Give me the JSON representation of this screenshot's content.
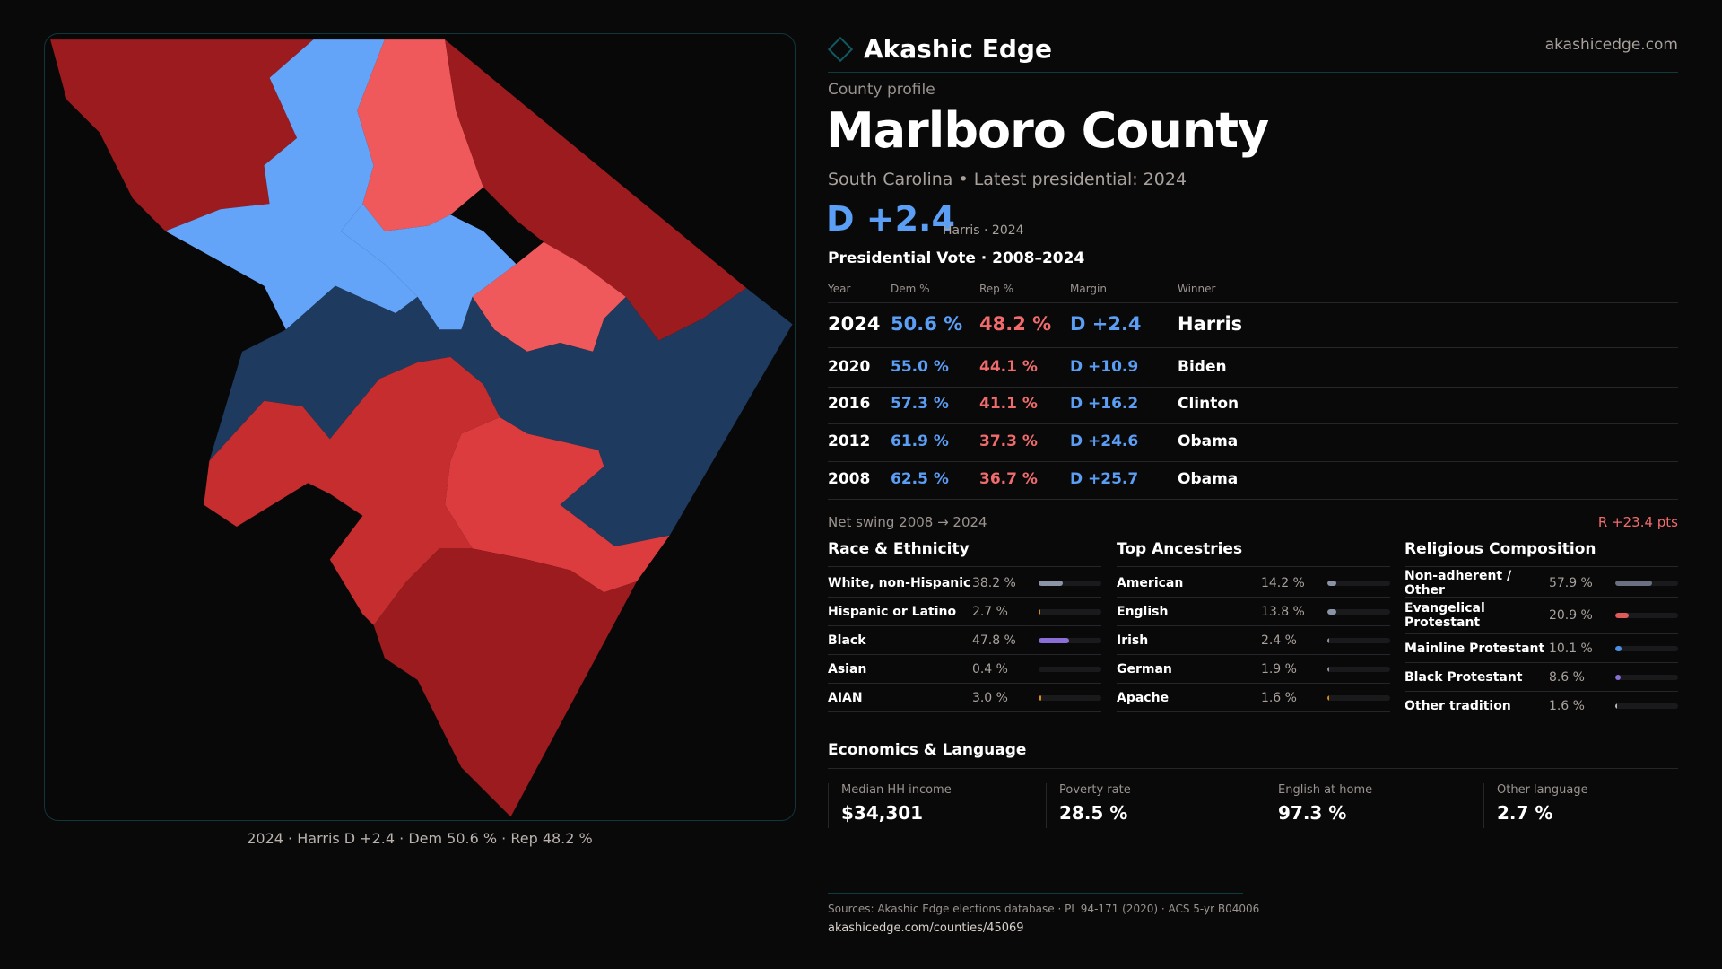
{
  "brand": {
    "name": "Akashic Edge",
    "site": "akashicedge.com"
  },
  "profile": {
    "kicker": "County profile",
    "title": "Marlboro County",
    "subtitle": "South Carolina • Latest presidential: 2024",
    "margin": "D +2.4",
    "margin_sub": "Harris · 2024"
  },
  "map": {
    "caption": "2024 · Harris D +2.4 · Dem 50.6 % · Rep 48.2 %",
    "colors": {
      "dark_red": "#9b1b1e",
      "red": "#c62d2f",
      "light_red": "#f0595c",
      "light_blue": "#63a4f8",
      "navy": "#1e3a5f"
    }
  },
  "vote": {
    "title": "Presidential Vote · 2008–2024",
    "headers": [
      "Year",
      "Dem %",
      "Rep %",
      "Margin",
      "Winner"
    ],
    "rows": [
      [
        "2024",
        "50.6 %",
        "48.2 %",
        "D +2.4",
        "Harris"
      ],
      [
        "2020",
        "55.0 %",
        "44.1 %",
        "D +10.9",
        "Biden"
      ],
      [
        "2016",
        "57.3 %",
        "41.1 %",
        "D +16.2",
        "Clinton"
      ],
      [
        "2012",
        "61.9 %",
        "37.3 %",
        "D +24.6",
        "Obama"
      ],
      [
        "2008",
        "62.5 %",
        "36.7 %",
        "D +25.7",
        "Obama"
      ]
    ],
    "swing_label": "Net swing 2008 → 2024",
    "swing_value": "R +23.4 pts"
  },
  "sections": [
    {
      "title": "Race & Ethnicity",
      "items": [
        {
          "label": "White, non-Hispanic",
          "value": "38.2 %",
          "pct": 38.2,
          "color": "#8a94a6"
        },
        {
          "label": "Hispanic or Latino",
          "value": "2.7 %",
          "pct": 2.7,
          "color": "#d68a1c"
        },
        {
          "label": "Black",
          "value": "47.8 %",
          "pct": 47.8,
          "color": "#8b6fd8"
        },
        {
          "label": "Asian",
          "value": "0.4 %",
          "pct": 0.4,
          "color": "#3aa0a0"
        },
        {
          "label": "AIAN",
          "value": "3.0 %",
          "pct": 3.0,
          "color": "#d68a1c"
        }
      ]
    },
    {
      "title": "Top Ancestries",
      "items": [
        {
          "label": "American",
          "value": "14.2 %",
          "pct": 14.2,
          "color": "#8a94a6"
        },
        {
          "label": "English",
          "value": "13.8 %",
          "pct": 13.8,
          "color": "#8a94a6"
        },
        {
          "label": "Irish",
          "value": "2.4 %",
          "pct": 2.4,
          "color": "#8a94a6"
        },
        {
          "label": "German",
          "value": "1.9 %",
          "pct": 1.9,
          "color": "#8a94a6"
        },
        {
          "label": "Apache",
          "value": "1.6 %",
          "pct": 1.6,
          "color": "#d68a1c"
        }
      ]
    },
    {
      "title": "Religious Composition",
      "items": [
        {
          "label": "Non-adherent / Other",
          "value": "57.9 %",
          "pct": 57.9,
          "color": "#6b7080"
        },
        {
          "label": "Evangelical Protestant",
          "value": "20.9 %",
          "pct": 20.9,
          "color": "#e05a5a"
        },
        {
          "label": "Mainline Protestant",
          "value": "10.1 %",
          "pct": 10.1,
          "color": "#4a90e2"
        },
        {
          "label": "Black Protestant",
          "value": "8.6 %",
          "pct": 8.6,
          "color": "#8b6fd8"
        },
        {
          "label": "Other tradition",
          "value": "1.6 %",
          "pct": 1.6,
          "color": "#bbbbbb"
        }
      ]
    }
  ],
  "econ": {
    "title": "Economics & Language",
    "stats": [
      {
        "label": "Median HH income",
        "value": "$34,301"
      },
      {
        "label": "Poverty rate",
        "value": "28.5 %"
      },
      {
        "label": "English at home",
        "value": "97.3 %"
      },
      {
        "label": "Other language",
        "value": "2.7 %"
      }
    ]
  },
  "footer": {
    "sources": "Sources: Akashic Edge elections database · PL 94-171 (2020) · ACS 5-yr B04006",
    "url": "akashicedge.com/counties/45069"
  }
}
